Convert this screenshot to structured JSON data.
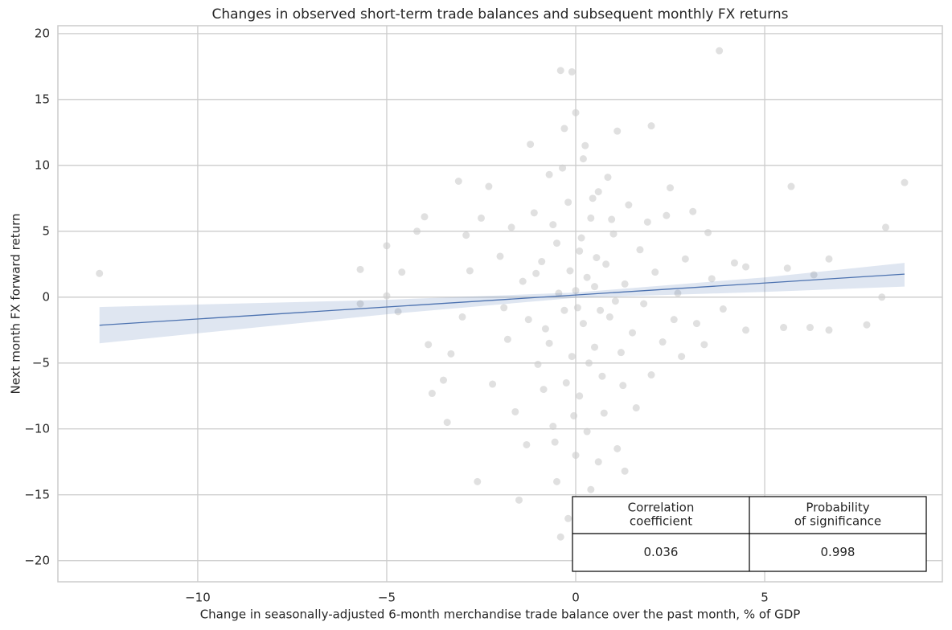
{
  "chart_data": {
    "type": "scatter",
    "title": "Changes in observed short-term trade balances and subsequent monthly FX returns",
    "x_label": "Change in seasonally-adjusted 6-month merchandise trade balance over the past month, % of GDP",
    "y_label": "Next month FX forward return",
    "xlim": [
      -13.7,
      9.7
    ],
    "ylim": [
      -21.6,
      20.6
    ],
    "xticks": [
      {
        "value": -10,
        "label": "−10"
      },
      {
        "value": -5,
        "label": "−5"
      },
      0,
      5
    ],
    "yticks": [
      {
        "value": -20,
        "label": "−20"
      },
      {
        "value": -15,
        "label": "−15"
      },
      {
        "value": -10,
        "label": "−10"
      },
      {
        "value": -5,
        "label": "−5"
      },
      0,
      5,
      10,
      15,
      20
    ],
    "grid": true,
    "color": "#cccccc",
    "x": [
      -12.6,
      -5.7,
      -5.7,
      -5.0,
      -5.0,
      -4.7,
      -4.6,
      -4.2,
      -4.0,
      -3.9,
      -3.8,
      -3.5,
      -3.4,
      -3.1,
      -3.3,
      -3.0,
      -2.9,
      -2.8,
      -2.6,
      -2.5,
      -2.3,
      -2.2,
      -2.0,
      -1.9,
      -1.8,
      -1.7,
      -1.6,
      -1.5,
      -1.4,
      -1.3,
      -1.2,
      -1.1,
      -1.0,
      -0.9,
      -0.8,
      -0.7,
      -0.6,
      -0.5,
      -0.5,
      -0.4,
      -0.4,
      -0.3,
      -0.3,
      -0.2,
      -0.2,
      -0.1,
      -0.1,
      0.0,
      0.0,
      0.0,
      0.1,
      0.1,
      0.2,
      0.2,
      0.3,
      0.3,
      0.4,
      0.4,
      0.5,
      0.5,
      0.6,
      0.7,
      0.8,
      0.9,
      1.0,
      1.1,
      1.1,
      1.2,
      1.3,
      1.3,
      1.4,
      1.5,
      1.6,
      1.7,
      1.8,
      1.9,
      2.0,
      2.0,
      2.1,
      2.3,
      2.4,
      2.5,
      2.6,
      2.7,
      2.8,
      2.9,
      3.1,
      3.2,
      3.4,
      3.5,
      3.6,
      3.8,
      3.9,
      4.2,
      4.5,
      4.5,
      5.5,
      5.6,
      5.7,
      6.2,
      6.3,
      6.7,
      6.7,
      7.7,
      8.1,
      8.2,
      8.7,
      -0.15,
      0.05,
      0.15,
      -0.25,
      0.35,
      -0.45,
      0.55,
      -0.6,
      0.65,
      -0.7,
      0.75,
      -0.35,
      0.25,
      -0.05,
      0.45,
      -0.85,
      0.95,
      1.05,
      -1.05,
      1.25,
      -1.25,
      0.85,
      -0.55,
      0.6
    ],
    "y": [
      1.8,
      2.1,
      -0.5,
      3.9,
      0.1,
      -1.1,
      1.9,
      5.0,
      6.1,
      -3.6,
      -7.3,
      -6.3,
      -9.5,
      8.8,
      -4.3,
      -1.5,
      4.7,
      2.0,
      -14.0,
      6.0,
      8.4,
      -6.6,
      3.1,
      -0.8,
      -3.2,
      5.3,
      -8.7,
      -15.4,
      1.2,
      -11.2,
      11.6,
      6.4,
      -5.1,
      2.7,
      -2.4,
      9.3,
      -9.8,
      -14.0,
      4.1,
      17.2,
      -18.2,
      12.8,
      -1.0,
      -16.8,
      7.2,
      17.1,
      -4.5,
      14.0,
      0.5,
      -12.0,
      3.5,
      -7.5,
      10.5,
      -2.0,
      1.5,
      -10.2,
      -14.6,
      6.0,
      -3.8,
      0.8,
      8.0,
      -6.0,
      2.5,
      -1.5,
      4.8,
      12.6,
      -11.5,
      -4.2,
      -13.2,
      1.0,
      7.0,
      -2.7,
      -8.4,
      3.6,
      -0.5,
      5.7,
      13.0,
      -5.9,
      1.9,
      -3.4,
      6.2,
      8.3,
      -1.7,
      0.3,
      -4.5,
      2.9,
      6.5,
      -2.0,
      -3.6,
      4.9,
      1.4,
      18.7,
      -0.9,
      2.6,
      2.3,
      -2.5,
      -2.3,
      2.2,
      8.4,
      -2.3,
      1.7,
      2.9,
      -2.5,
      -2.1,
      0.0,
      5.3,
      8.7,
      2.0,
      -0.8,
      4.5,
      -6.5,
      -5.0,
      0.3,
      3.0,
      5.5,
      -1.0,
      -3.5,
      -8.8,
      9.8,
      11.5,
      -9.0,
      7.5,
      -7.0,
      5.9,
      -0.3,
      1.8,
      -6.7,
      -1.7,
      9.1,
      -11.0,
      -12.5
    ],
    "regression": {
      "color": "#4c72b0",
      "x": [
        -12.6,
        8.7
      ],
      "y": [
        -2.13,
        1.75
      ]
    },
    "confidence_band": {
      "color": "#4c72b0",
      "x": [
        -12.6,
        -5,
        0,
        5,
        8.7
      ],
      "lower": [
        -3.5,
        -1.3,
        -0.05,
        0.4,
        0.8
      ],
      "upper": [
        -0.75,
        -0.2,
        0.35,
        1.5,
        2.6
      ]
    },
    "table": {
      "columns": [
        [
          "Correlation",
          "coefficient"
        ],
        [
          "Probability",
          "of significance"
        ]
      ],
      "values": [
        0.036,
        0.998
      ]
    }
  }
}
